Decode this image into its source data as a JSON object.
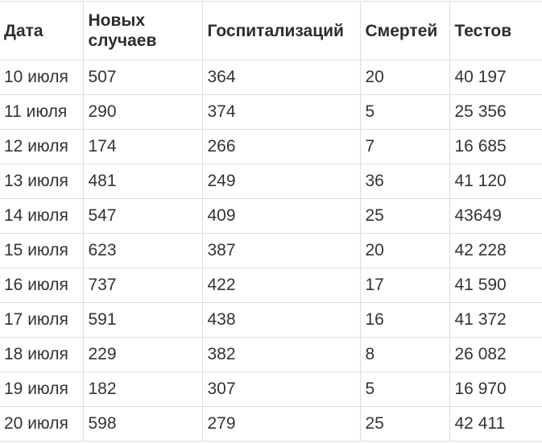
{
  "table": {
    "headers": [
      "Дата",
      "Новых случаев",
      "Госпитализаций",
      "Смертей",
      "Тестов"
    ],
    "rows": [
      [
        "10 июля",
        "507",
        "364",
        "20",
        "40 197"
      ],
      [
        "11 июля",
        "290",
        "374",
        "5",
        "25 356"
      ],
      [
        "12 июля",
        "174",
        "266",
        "7",
        "16 685"
      ],
      [
        "13 июля",
        "481",
        "249",
        "36",
        "41 120"
      ],
      [
        "14 июля",
        "547",
        "409",
        "25",
        "43649"
      ],
      [
        "15 июля",
        "623",
        "387",
        "20",
        "42 228"
      ],
      [
        "16 июля",
        "737",
        "422",
        "17",
        "41 590"
      ],
      [
        "17 июля",
        "591",
        "438",
        "16",
        "41 372"
      ],
      [
        "18 июля",
        "229",
        "382",
        "8",
        "26 082"
      ],
      [
        "19 июля",
        "182",
        "307",
        "5",
        "16 970"
      ],
      [
        "20 июля",
        "598",
        "279",
        "25",
        "42 411"
      ]
    ]
  }
}
